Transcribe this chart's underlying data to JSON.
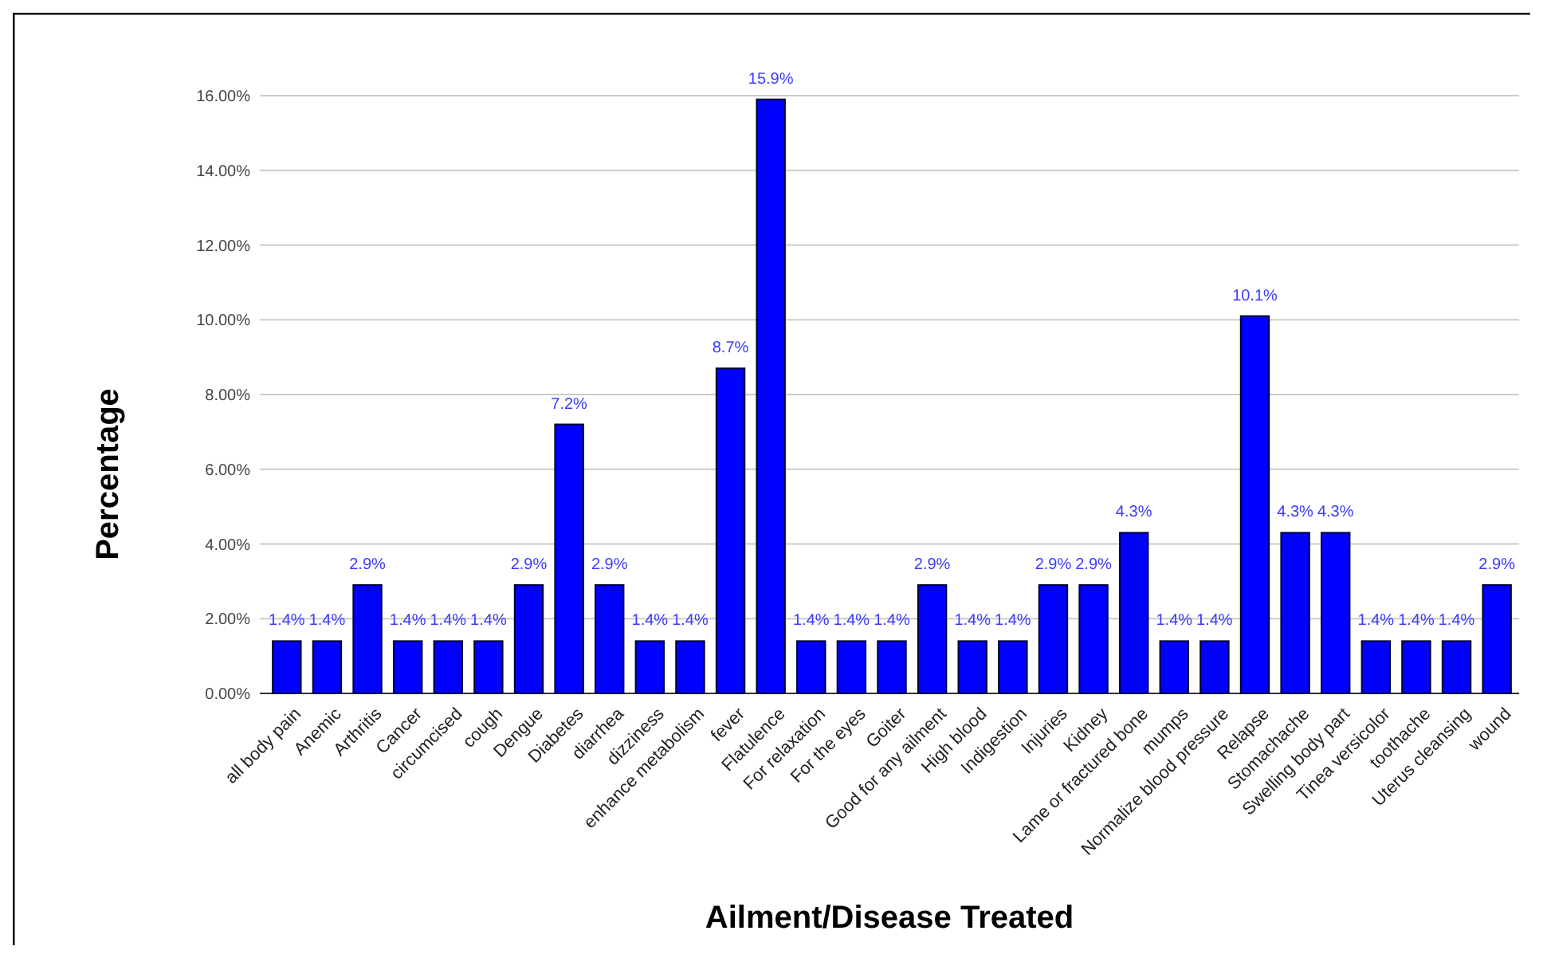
{
  "chart_data": {
    "type": "bar",
    "xlabel": "Ailment/Disease Treated",
    "ylabel": "Percentage",
    "categories": [
      "all body pain",
      "Anemic",
      "Arthritis",
      "Cancer",
      "circumcised",
      "cough",
      "Dengue",
      "Diabetes",
      "diarrhea",
      "dizziness",
      "enhance metabolism",
      "fever",
      "Flatulence",
      "For relaxation",
      "For the eyes",
      "Goiter",
      "Good for any ailment",
      "High blood",
      "Indigestion",
      "Injuries",
      "Kidney",
      "Lame or fractured bone",
      "mumps",
      "Normalize blood pressure",
      "Relapse",
      "Stomachache",
      "Swelling body part",
      "Tinea versicolor",
      "toothache",
      "Uterus cleansing",
      "wound"
    ],
    "values": [
      1.4,
      1.4,
      2.9,
      1.4,
      1.4,
      1.4,
      2.9,
      7.2,
      2.9,
      1.4,
      1.4,
      8.7,
      15.9,
      1.4,
      1.4,
      1.4,
      2.9,
      1.4,
      1.4,
      2.9,
      2.9,
      4.3,
      1.4,
      1.4,
      10.1,
      4.3,
      4.3,
      1.4,
      1.4,
      1.4,
      2.9
    ],
    "value_labels": [
      "1.4%",
      "1.4%",
      "2.9%",
      "1.4%",
      "1.4%",
      "1.4%",
      "2.9%",
      "7.2%",
      "2.9%",
      "1.4%",
      "1.4%",
      "8.7%",
      "15.9%",
      "1.4%",
      "1.4%",
      "1.4%",
      "2.9%",
      "1.4%",
      "1.4%",
      "2.9%",
      "2.9%",
      "4.3%",
      "1.4%",
      "1.4%",
      "10.1%",
      "4.3%",
      "4.3%",
      "1.4%",
      "1.4%",
      "1.4%",
      "2.9%"
    ],
    "color": "#0000ff",
    "ylim": [
      0,
      16
    ],
    "yticks": [
      {
        "value": 0,
        "label": "0.00%"
      },
      {
        "value": 2,
        "label": "2.00%"
      },
      {
        "value": 4,
        "label": "4.00%"
      },
      {
        "value": 6,
        "label": "6.00%"
      },
      {
        "value": 8,
        "label": "8.00%"
      },
      {
        "value": 10,
        "label": "10.00%"
      },
      {
        "value": 12,
        "label": "12.00%"
      },
      {
        "value": 14,
        "label": "14.00%"
      },
      {
        "value": 16,
        "label": "16.00%"
      }
    ],
    "grid": "y"
  }
}
